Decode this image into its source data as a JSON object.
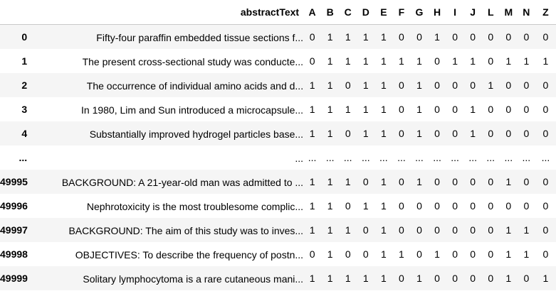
{
  "table": {
    "index_header": "",
    "columns": [
      "abstractText",
      "A",
      "B",
      "C",
      "D",
      "E",
      "F",
      "G",
      "H",
      "I",
      "J",
      "L",
      "M",
      "N",
      "Z"
    ],
    "rows": [
      {
        "index": "0",
        "abstractText": "Fifty-four paraffin embedded tissue sections f...",
        "values": [
          "0",
          "1",
          "1",
          "1",
          "1",
          "0",
          "0",
          "1",
          "0",
          "0",
          "0",
          "0",
          "0",
          "0"
        ]
      },
      {
        "index": "1",
        "abstractText": "The present cross-sectional study was conducte...",
        "values": [
          "0",
          "1",
          "1",
          "1",
          "1",
          "1",
          "1",
          "0",
          "1",
          "1",
          "0",
          "1",
          "1",
          "1"
        ]
      },
      {
        "index": "2",
        "abstractText": "The occurrence of individual amino acids and d...",
        "values": [
          "1",
          "1",
          "0",
          "1",
          "1",
          "0",
          "1",
          "0",
          "0",
          "0",
          "1",
          "0",
          "0",
          "0"
        ]
      },
      {
        "index": "3",
        "abstractText": "In 1980, Lim and Sun introduced a microcapsule...",
        "values": [
          "1",
          "1",
          "1",
          "1",
          "1",
          "0",
          "1",
          "0",
          "0",
          "1",
          "0",
          "0",
          "0",
          "0"
        ]
      },
      {
        "index": "4",
        "abstractText": "Substantially improved hydrogel particles base...",
        "values": [
          "1",
          "1",
          "0",
          "1",
          "1",
          "0",
          "1",
          "0",
          "0",
          "1",
          "0",
          "0",
          "0",
          "0"
        ]
      },
      {
        "index": "...",
        "abstractText": "...",
        "values": [
          "...",
          "...",
          "...",
          "...",
          "...",
          "...",
          "...",
          "...",
          "...",
          "...",
          "...",
          "...",
          "...",
          "..."
        ]
      },
      {
        "index": "49995",
        "abstractText": "BACKGROUND: A 21-year-old man was admitted to ...",
        "values": [
          "1",
          "1",
          "1",
          "0",
          "1",
          "0",
          "1",
          "0",
          "0",
          "0",
          "0",
          "1",
          "0",
          "0"
        ]
      },
      {
        "index": "49996",
        "abstractText": "Nephrotoxicity is the most troublesome complic...",
        "values": [
          "1",
          "1",
          "0",
          "1",
          "1",
          "0",
          "0",
          "0",
          "0",
          "0",
          "0",
          "0",
          "0",
          "0"
        ]
      },
      {
        "index": "49997",
        "abstractText": "BACKGROUND: The aim of this study was to inves...",
        "values": [
          "1",
          "1",
          "1",
          "0",
          "1",
          "0",
          "0",
          "0",
          "0",
          "0",
          "0",
          "1",
          "1",
          "0"
        ]
      },
      {
        "index": "49998",
        "abstractText": "OBJECTIVES: To describe the frequency of postn...",
        "values": [
          "0",
          "1",
          "0",
          "0",
          "1",
          "1",
          "0",
          "1",
          "0",
          "0",
          "0",
          "1",
          "1",
          "0"
        ]
      },
      {
        "index": "49999",
        "abstractText": "Solitary lymphocytoma is a rare cutaneous mani...",
        "values": [
          "1",
          "1",
          "1",
          "1",
          "1",
          "0",
          "1",
          "0",
          "0",
          "0",
          "0",
          "1",
          "0",
          "1"
        ]
      }
    ]
  }
}
